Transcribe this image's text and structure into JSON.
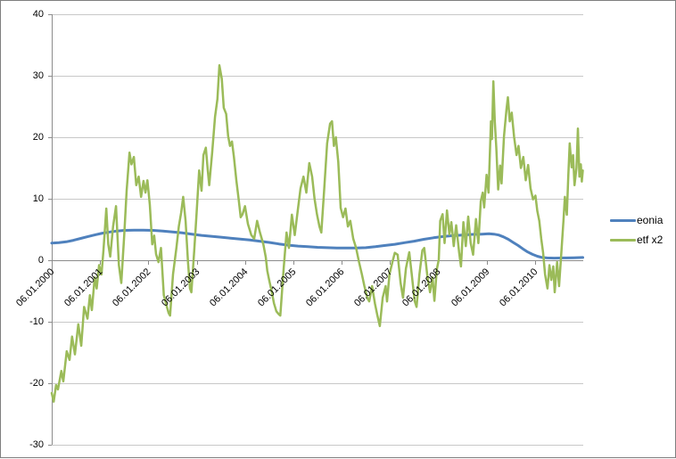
{
  "chart_data": {
    "type": "line",
    "title": "",
    "grid": "horizontal",
    "legend_position": "right",
    "x_axis": {
      "tick_labels": [
        "06.01.2000",
        "06.01.2001",
        "06.01.2002",
        "06.01.2003",
        "06.01.2004",
        "06.01.2005",
        "06.01.2006",
        "06.01.2007",
        "06.01.2008",
        "06.01.2009",
        "06.01.2010"
      ],
      "tick_years": [
        2000,
        2001,
        2002,
        2003,
        2004,
        2005,
        2006,
        2007,
        2008,
        2009,
        2010
      ],
      "range_years": [
        2000,
        2011
      ]
    },
    "y_axis": {
      "ticks": [
        40,
        30,
        20,
        10,
        0,
        -10,
        -20,
        -30
      ],
      "range": [
        -30,
        40
      ]
    },
    "colors": {
      "grid": "#c8c8c8",
      "axis": "#8c8c8c",
      "frame": "#7f7f7f"
    },
    "series": [
      {
        "name": "eonia",
        "color": "#4F81BD",
        "stroke_width": 3,
        "points": [
          [
            2000.0,
            2.8
          ],
          [
            2000.15,
            2.85
          ],
          [
            2000.3,
            3.0
          ],
          [
            2000.45,
            3.25
          ],
          [
            2000.6,
            3.55
          ],
          [
            2000.75,
            3.85
          ],
          [
            2000.9,
            4.15
          ],
          [
            2001.05,
            4.4
          ],
          [
            2001.2,
            4.6
          ],
          [
            2001.35,
            4.75
          ],
          [
            2001.5,
            4.85
          ],
          [
            2001.7,
            4.9
          ],
          [
            2001.9,
            4.9
          ],
          [
            2002.1,
            4.85
          ],
          [
            2002.3,
            4.75
          ],
          [
            2002.5,
            4.6
          ],
          [
            2002.7,
            4.45
          ],
          [
            2002.9,
            4.25
          ],
          [
            2003.1,
            4.05
          ],
          [
            2003.3,
            3.9
          ],
          [
            2003.5,
            3.75
          ],
          [
            2003.7,
            3.6
          ],
          [
            2003.9,
            3.45
          ],
          [
            2004.1,
            3.3
          ],
          [
            2004.3,
            3.1
          ],
          [
            2004.5,
            2.9
          ],
          [
            2004.7,
            2.65
          ],
          [
            2004.9,
            2.45
          ],
          [
            2005.1,
            2.3
          ],
          [
            2005.3,
            2.2
          ],
          [
            2005.5,
            2.1
          ],
          [
            2005.7,
            2.05
          ],
          [
            2005.9,
            2.0
          ],
          [
            2006.1,
            2.0
          ],
          [
            2006.3,
            2.0
          ],
          [
            2006.5,
            2.05
          ],
          [
            2006.7,
            2.2
          ],
          [
            2006.9,
            2.4
          ],
          [
            2007.1,
            2.6
          ],
          [
            2007.3,
            2.85
          ],
          [
            2007.5,
            3.1
          ],
          [
            2007.7,
            3.4
          ],
          [
            2007.9,
            3.65
          ],
          [
            2008.1,
            3.85
          ],
          [
            2008.3,
            4.0
          ],
          [
            2008.5,
            4.1
          ],
          [
            2008.7,
            4.2
          ],
          [
            2008.9,
            4.25
          ],
          [
            2009.05,
            4.3
          ],
          [
            2009.15,
            4.25
          ],
          [
            2009.25,
            4.1
          ],
          [
            2009.35,
            3.8
          ],
          [
            2009.45,
            3.4
          ],
          [
            2009.55,
            2.9
          ],
          [
            2009.65,
            2.4
          ],
          [
            2009.75,
            1.85
          ],
          [
            2009.85,
            1.35
          ],
          [
            2009.95,
            0.95
          ],
          [
            2010.05,
            0.65
          ],
          [
            2010.15,
            0.45
          ],
          [
            2010.25,
            0.38
          ],
          [
            2010.4,
            0.35
          ],
          [
            2010.6,
            0.38
          ],
          [
            2010.8,
            0.4
          ],
          [
            2010.99,
            0.45
          ]
        ]
      },
      {
        "name": "etf x2",
        "color": "#9BBB59",
        "stroke_width": 2.5,
        "points": [
          [
            2000.0,
            -21.6
          ],
          [
            2000.04,
            -23.0
          ],
          [
            2000.09,
            -20.3
          ],
          [
            2000.13,
            -21.0
          ],
          [
            2000.2,
            -18.0
          ],
          [
            2000.24,
            -19.7
          ],
          [
            2000.31,
            -14.8
          ],
          [
            2000.37,
            -16.2
          ],
          [
            2000.42,
            -12.4
          ],
          [
            2000.48,
            -15.3
          ],
          [
            2000.55,
            -10.4
          ],
          [
            2000.61,
            -13.9
          ],
          [
            2000.67,
            -7.6
          ],
          [
            2000.74,
            -9.5
          ],
          [
            2000.79,
            -5.7
          ],
          [
            2000.83,
            -8.1
          ],
          [
            2000.89,
            -2.8
          ],
          [
            2000.93,
            -4.6
          ],
          [
            2000.98,
            -0.8
          ],
          [
            2001.03,
            -2.3
          ],
          [
            2001.07,
            1.6
          ],
          [
            2001.13,
            8.4
          ],
          [
            2001.17,
            2.6
          ],
          [
            2001.21,
            0.6
          ],
          [
            2001.27,
            5.5
          ],
          [
            2001.33,
            8.8
          ],
          [
            2001.39,
            -0.8
          ],
          [
            2001.44,
            -3.7
          ],
          [
            2001.5,
            4.1
          ],
          [
            2001.55,
            11.3
          ],
          [
            2001.61,
            17.5
          ],
          [
            2001.65,
            15.6
          ],
          [
            2001.7,
            16.8
          ],
          [
            2001.75,
            12.2
          ],
          [
            2001.8,
            13.6
          ],
          [
            2001.85,
            10.3
          ],
          [
            2001.9,
            12.9
          ],
          [
            2001.94,
            11.0
          ],
          [
            2001.98,
            13.0
          ],
          [
            2002.03,
            9.0
          ],
          [
            2002.08,
            2.6
          ],
          [
            2002.12,
            4.0
          ],
          [
            2002.16,
            1.0
          ],
          [
            2002.21,
            -0.3
          ],
          [
            2002.26,
            2.0
          ],
          [
            2002.32,
            -5.7
          ],
          [
            2002.38,
            -7.5
          ],
          [
            2002.42,
            -8.6
          ],
          [
            2002.45,
            -9.0
          ],
          [
            2002.51,
            -2.3
          ],
          [
            2002.58,
            2.0
          ],
          [
            2002.63,
            5.5
          ],
          [
            2002.68,
            7.8
          ],
          [
            2002.72,
            10.3
          ],
          [
            2002.77,
            6.4
          ],
          [
            2002.82,
            -0.3
          ],
          [
            2002.86,
            -4.6
          ],
          [
            2002.89,
            -5.2
          ],
          [
            2002.95,
            1.6
          ],
          [
            2003.0,
            7.8
          ],
          [
            2003.05,
            14.6
          ],
          [
            2003.1,
            11.3
          ],
          [
            2003.14,
            17.1
          ],
          [
            2003.19,
            18.3
          ],
          [
            2003.23,
            14.6
          ],
          [
            2003.26,
            12.2
          ],
          [
            2003.32,
            17.5
          ],
          [
            2003.38,
            23.3
          ],
          [
            2003.43,
            26.2
          ],
          [
            2003.47,
            31.7
          ],
          [
            2003.52,
            29.5
          ],
          [
            2003.56,
            24.8
          ],
          [
            2003.61,
            23.8
          ],
          [
            2003.65,
            20.2
          ],
          [
            2003.69,
            18.6
          ],
          [
            2003.73,
            19.3
          ],
          [
            2003.77,
            16.8
          ],
          [
            2003.82,
            13.0
          ],
          [
            2003.87,
            9.8
          ],
          [
            2003.91,
            7.0
          ],
          [
            2003.95,
            7.5
          ],
          [
            2004.0,
            8.8
          ],
          [
            2004.06,
            5.9
          ],
          [
            2004.13,
            4.1
          ],
          [
            2004.19,
            3.5
          ],
          [
            2004.25,
            6.4
          ],
          [
            2004.31,
            4.5
          ],
          [
            2004.38,
            2.6
          ],
          [
            2004.43,
            0.5
          ],
          [
            2004.46,
            -1.7
          ],
          [
            2004.5,
            -3.2
          ],
          [
            2004.55,
            -5.0
          ],
          [
            2004.6,
            -7.0
          ],
          [
            2004.65,
            -8.3
          ],
          [
            2004.7,
            -8.8
          ],
          [
            2004.73,
            -9.0
          ],
          [
            2004.8,
            -1.3
          ],
          [
            2004.86,
            4.5
          ],
          [
            2004.91,
            2.0
          ],
          [
            2004.97,
            7.4
          ],
          [
            2005.03,
            4.1
          ],
          [
            2005.09,
            8.0
          ],
          [
            2005.15,
            11.7
          ],
          [
            2005.21,
            13.6
          ],
          [
            2005.27,
            11.0
          ],
          [
            2005.33,
            15.8
          ],
          [
            2005.39,
            13.6
          ],
          [
            2005.44,
            10.0
          ],
          [
            2005.49,
            7.4
          ],
          [
            2005.54,
            5.5
          ],
          [
            2005.58,
            4.5
          ],
          [
            2005.64,
            11.7
          ],
          [
            2005.7,
            19.0
          ],
          [
            2005.76,
            22.2
          ],
          [
            2005.8,
            22.6
          ],
          [
            2005.84,
            18.6
          ],
          [
            2005.88,
            20.0
          ],
          [
            2005.93,
            16.0
          ],
          [
            2005.98,
            8.5
          ],
          [
            2006.03,
            7.0
          ],
          [
            2006.08,
            8.4
          ],
          [
            2006.13,
            5.5
          ],
          [
            2006.18,
            6.4
          ],
          [
            2006.24,
            3.5
          ],
          [
            2006.3,
            2.0
          ],
          [
            2006.36,
            -0.3
          ],
          [
            2006.42,
            -2.3
          ],
          [
            2006.47,
            -4.2
          ],
          [
            2006.53,
            -6.1
          ],
          [
            2006.57,
            -6.7
          ],
          [
            2006.63,
            -4.2
          ],
          [
            2006.69,
            -7.1
          ],
          [
            2006.74,
            -9.0
          ],
          [
            2006.79,
            -10.7
          ],
          [
            2006.85,
            -6.1
          ],
          [
            2006.91,
            -4.2
          ],
          [
            2006.94,
            -6.7
          ],
          [
            2006.99,
            -2.3
          ],
          [
            2007.05,
            -0.3
          ],
          [
            2007.1,
            1.2
          ],
          [
            2007.16,
            0.9
          ],
          [
            2007.22,
            -3.7
          ],
          [
            2007.27,
            -6.1
          ],
          [
            2007.33,
            -1.3
          ],
          [
            2007.4,
            1.3
          ],
          [
            2007.45,
            -2.3
          ],
          [
            2007.51,
            -6.6
          ],
          [
            2007.55,
            -7.6
          ],
          [
            2007.61,
            -2.3
          ],
          [
            2007.67,
            1.6
          ],
          [
            2007.71,
            2.0
          ],
          [
            2007.77,
            -2.3
          ],
          [
            2007.83,
            -5.2
          ],
          [
            2007.88,
            -2.8
          ],
          [
            2007.92,
            -6.6
          ],
          [
            2007.97,
            -1.5
          ],
          [
            2008.01,
            0.1
          ],
          [
            2008.04,
            6.4
          ],
          [
            2008.09,
            7.5
          ],
          [
            2008.13,
            2.8
          ],
          [
            2008.18,
            8.1
          ],
          [
            2008.23,
            4.2
          ],
          [
            2008.27,
            6.2
          ],
          [
            2008.32,
            2.3
          ],
          [
            2008.37,
            5.7
          ],
          [
            2008.43,
            1.3
          ],
          [
            2008.47,
            -1.0
          ],
          [
            2008.52,
            6.2
          ],
          [
            2008.57,
            2.3
          ],
          [
            2008.62,
            7.1
          ],
          [
            2008.67,
            2.8
          ],
          [
            2008.72,
            0.9
          ],
          [
            2008.78,
            6.7
          ],
          [
            2008.83,
            2.8
          ],
          [
            2008.88,
            9.6
          ],
          [
            2008.92,
            11.0
          ],
          [
            2008.95,
            8.6
          ],
          [
            2009.0,
            13.9
          ],
          [
            2009.04,
            11.0
          ],
          [
            2009.07,
            17.8
          ],
          [
            2009.09,
            22.6
          ],
          [
            2009.11,
            19.7
          ],
          [
            2009.14,
            29.1
          ],
          [
            2009.17,
            22.6
          ],
          [
            2009.2,
            18.3
          ],
          [
            2009.24,
            11.5
          ],
          [
            2009.28,
            15.4
          ],
          [
            2009.31,
            12.5
          ],
          [
            2009.36,
            20.1
          ],
          [
            2009.41,
            24.5
          ],
          [
            2009.44,
            26.5
          ],
          [
            2009.48,
            22.6
          ],
          [
            2009.52,
            24.0
          ],
          [
            2009.57,
            20.0
          ],
          [
            2009.62,
            17.1
          ],
          [
            2009.66,
            18.6
          ],
          [
            2009.71,
            15.0
          ],
          [
            2009.76,
            16.8
          ],
          [
            2009.81,
            13.0
          ],
          [
            2009.86,
            15.5
          ],
          [
            2009.91,
            11.7
          ],
          [
            2009.96,
            9.9
          ],
          [
            2010.01,
            10.5
          ],
          [
            2010.05,
            8.0
          ],
          [
            2010.09,
            6.4
          ],
          [
            2010.13,
            3.5
          ],
          [
            2010.17,
            1.2
          ],
          [
            2010.21,
            -2.3
          ],
          [
            2010.26,
            -4.6
          ],
          [
            2010.3,
            -0.8
          ],
          [
            2010.34,
            -3.2
          ],
          [
            2010.38,
            -1.0
          ],
          [
            2010.41,
            -5.2
          ],
          [
            2010.46,
            -0.3
          ],
          [
            2010.5,
            -4.2
          ],
          [
            2010.55,
            1.6
          ],
          [
            2010.59,
            6.4
          ],
          [
            2010.62,
            10.3
          ],
          [
            2010.66,
            7.4
          ],
          [
            2010.69,
            13.6
          ],
          [
            2010.72,
            19.0
          ],
          [
            2010.76,
            15.1
          ],
          [
            2010.79,
            17.1
          ],
          [
            2010.82,
            12.2
          ],
          [
            2010.86,
            15.0
          ],
          [
            2010.89,
            21.4
          ],
          [
            2010.92,
            13.6
          ],
          [
            2010.95,
            15.6
          ],
          [
            2010.97,
            12.8
          ],
          [
            2010.99,
            14.6
          ]
        ]
      }
    ]
  },
  "legend": {
    "items": [
      {
        "label": "eonia",
        "color": "#4F81BD"
      },
      {
        "label": "etf x2",
        "color": "#9BBB59"
      }
    ]
  }
}
